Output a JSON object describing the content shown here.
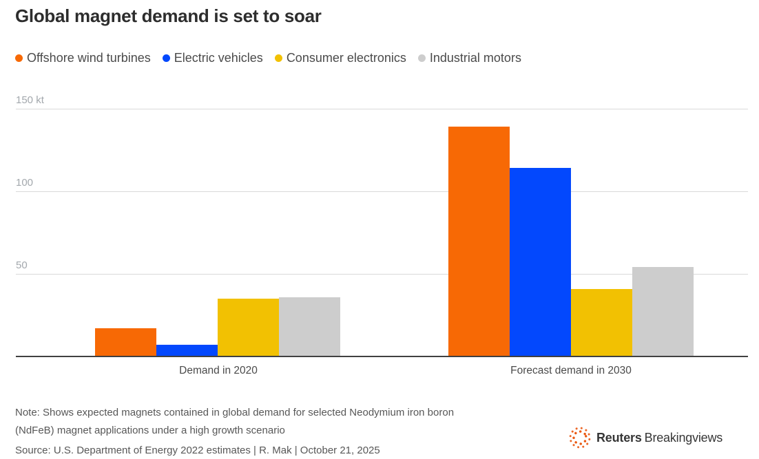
{
  "title": "Global magnet demand is set to soar",
  "chart_data": {
    "type": "bar",
    "title": "Global magnet demand is set to soar",
    "unit": "kt",
    "categories": [
      "Demand in 2020",
      "Forecast demand in 2030"
    ],
    "series": [
      {
        "name": "Offshore wind turbines",
        "color": "#f76905",
        "values": [
          17,
          139
        ]
      },
      {
        "name": "Electric vehicles",
        "color": "#0348fd",
        "values": [
          7,
          114
        ]
      },
      {
        "name": "Consumer electronics",
        "color": "#f2c102",
        "values": [
          35,
          41
        ]
      },
      {
        "name": "Industrial motors",
        "color": "#cdcdcd",
        "values": [
          36,
          54
        ]
      }
    ],
    "ylim": [
      0,
      150
    ],
    "yticks": [
      {
        "value": 150,
        "label": "150 kt"
      },
      {
        "value": 100,
        "label": "100"
      },
      {
        "value": 50,
        "label": "50"
      }
    ],
    "grid": "horizontal",
    "legend_position": "top"
  },
  "note": {
    "line1": "Note: Shows expected magnets contained in global demand for selected Neodymium iron boron",
    "line2": "(NdFeB) magnet applications under a high growth scenario"
  },
  "source": "Source: U.S. Department of Energy 2022 estimates | R. Mak | October 21, 2025",
  "logo": {
    "brand": "Reuters",
    "suffix": "Breakingviews",
    "dot_color": "#ea570f"
  }
}
